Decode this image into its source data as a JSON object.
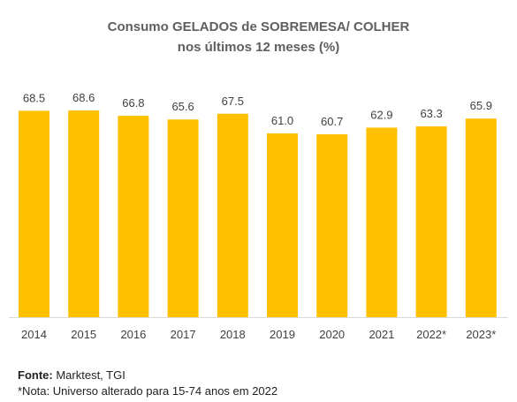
{
  "title": "Consumo GELADOS de SOBREMESA/ COLHER",
  "subtitle": "nos últimos 12 meses (%)",
  "footer": {
    "source_label": "Fonte:",
    "source_text": "Marktest, TGI",
    "note": "*Nota: Universo alterado para 15-74 anos em 2022"
  },
  "colors": {
    "bar": "#FFC000",
    "label": "#404040",
    "axis": "#d9d9d9"
  },
  "chart_data": {
    "type": "bar",
    "title": "Consumo GELADOS de SOBREMESA/ COLHER",
    "subtitle": "nos últimos 12 meses (%)",
    "categories": [
      "2014",
      "2015",
      "2016",
      "2017",
      "2018",
      "2019",
      "2020",
      "2021",
      "2022*",
      "2023*"
    ],
    "values": [
      68.5,
      68.6,
      66.8,
      65.6,
      67.5,
      61.0,
      60.7,
      62.9,
      63.3,
      65.9
    ],
    "value_labels": [
      "68.5",
      "68.6",
      "66.8",
      "65.6",
      "67.5",
      "61.0",
      "60.7",
      "62.9",
      "63.3",
      "65.9"
    ],
    "ylim": [
      0,
      68.6
    ],
    "grid": false,
    "legend": "none"
  }
}
